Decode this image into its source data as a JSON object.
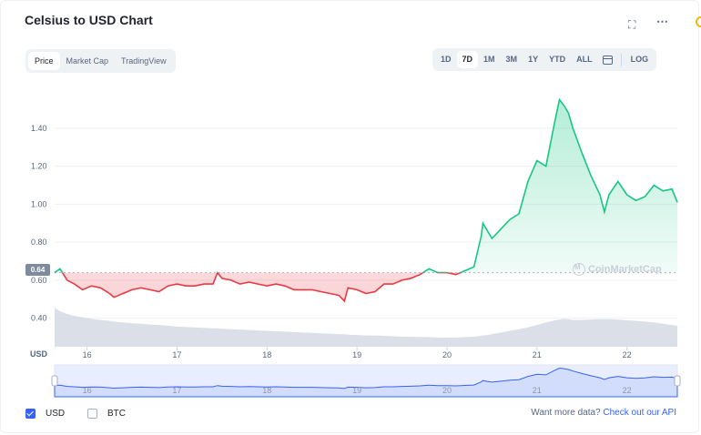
{
  "header": {
    "title": "Celsius to USD Chart"
  },
  "icons": {
    "expand": "expand-icon",
    "more": "more-icon",
    "calendar": "calendar-icon",
    "logo": "coinmarketcap-logo"
  },
  "view_tabs": [
    {
      "label": "Price",
      "active": true
    },
    {
      "label": "Market Cap",
      "active": false
    },
    {
      "label": "TradingView",
      "active": false
    }
  ],
  "range_tabs": [
    {
      "label": "1D",
      "active": false
    },
    {
      "label": "7D",
      "active": true
    },
    {
      "label": "1M",
      "active": false
    },
    {
      "label": "3M",
      "active": false
    },
    {
      "label": "1Y",
      "active": false
    },
    {
      "label": "YTD",
      "active": false
    },
    {
      "label": "ALL",
      "active": false
    }
  ],
  "log_label": "LOG",
  "watermark": "CoinMarketCap",
  "current_price_tag": "0.64",
  "legend": [
    {
      "label": "USD",
      "checked": true
    },
    {
      "label": "BTC",
      "checked": false
    }
  ],
  "api": {
    "prefix": "Want more data?",
    "link": "Check out our API"
  },
  "colors": {
    "up": "#16c784",
    "down": "#ea3943",
    "accent": "#3861fb",
    "volume": "#cfd4e0"
  },
  "chart_data": {
    "type": "line",
    "ylabel_unit": "USD",
    "yticks": [
      0.4,
      0.6,
      0.8,
      1.0,
      1.2,
      1.4
    ],
    "ytick_labels": [
      "0.40",
      "0.60",
      "0.80",
      "1.00",
      "1.20",
      "1.40"
    ],
    "ylim": [
      0.25,
      1.62
    ],
    "xlim": [
      15.64,
      22.56
    ],
    "xticks": [
      16,
      17,
      18,
      19,
      20,
      21,
      22
    ],
    "xtick_labels": [
      "16",
      "17",
      "18",
      "19",
      "20",
      "21",
      "22"
    ],
    "baseline": 0.64,
    "grid": true,
    "x": [
      15.64,
      15.7,
      15.78,
      15.86,
      15.95,
      16.05,
      16.15,
      16.25,
      16.3,
      16.4,
      16.5,
      16.6,
      16.7,
      16.8,
      16.9,
      17.0,
      17.1,
      17.2,
      17.3,
      17.4,
      17.45,
      17.5,
      17.6,
      17.7,
      17.8,
      17.9,
      18.0,
      18.1,
      18.2,
      18.3,
      18.4,
      18.5,
      18.6,
      18.7,
      18.8,
      18.86,
      18.9,
      19.0,
      19.1,
      19.2,
      19.3,
      19.4,
      19.5,
      19.6,
      19.7,
      19.8,
      19.9,
      20.0,
      20.1,
      20.2,
      20.3,
      20.38,
      20.4,
      20.45,
      20.5,
      20.6,
      20.7,
      20.8,
      20.9,
      21.0,
      21.1,
      21.2,
      21.25,
      21.3,
      21.35,
      21.4,
      21.5,
      21.6,
      21.7,
      21.75,
      21.8,
      21.9,
      22.0,
      22.1,
      22.2,
      22.3,
      22.4,
      22.5,
      22.56
    ],
    "y": [
      0.64,
      0.66,
      0.6,
      0.58,
      0.55,
      0.57,
      0.56,
      0.53,
      0.51,
      0.53,
      0.55,
      0.56,
      0.55,
      0.54,
      0.57,
      0.58,
      0.57,
      0.57,
      0.58,
      0.58,
      0.64,
      0.61,
      0.6,
      0.58,
      0.59,
      0.58,
      0.57,
      0.58,
      0.57,
      0.55,
      0.55,
      0.55,
      0.54,
      0.53,
      0.52,
      0.49,
      0.56,
      0.55,
      0.53,
      0.54,
      0.58,
      0.58,
      0.6,
      0.61,
      0.63,
      0.66,
      0.64,
      0.64,
      0.63,
      0.65,
      0.67,
      0.83,
      0.9,
      0.86,
      0.82,
      0.87,
      0.92,
      0.95,
      1.12,
      1.23,
      1.2,
      1.44,
      1.55,
      1.52,
      1.48,
      1.4,
      1.27,
      1.15,
      1.05,
      0.96,
      1.05,
      1.12,
      1.05,
      1.02,
      1.04,
      1.1,
      1.07,
      1.08,
      1.01
    ],
    "volume": [
      0.93,
      0.85,
      0.78,
      0.74,
      0.7,
      0.67,
      0.64,
      0.62,
      0.6,
      0.58,
      0.56,
      0.55,
      0.53,
      0.52,
      0.5,
      0.48,
      0.47,
      0.46,
      0.45,
      0.44,
      0.44,
      0.43,
      0.42,
      0.41,
      0.4,
      0.39,
      0.38,
      0.37,
      0.36,
      0.35,
      0.34,
      0.33,
      0.32,
      0.31,
      0.3,
      0.3,
      0.29,
      0.28,
      0.27,
      0.27,
      0.26,
      0.25,
      0.24,
      0.24,
      0.23,
      0.23,
      0.22,
      0.22,
      0.22,
      0.23,
      0.24,
      0.26,
      0.27,
      0.28,
      0.3,
      0.34,
      0.38,
      0.42,
      0.46,
      0.52,
      0.58,
      0.63,
      0.65,
      0.67,
      0.66,
      0.64,
      0.64,
      0.65,
      0.66,
      0.66,
      0.66,
      0.65,
      0.63,
      0.62,
      0.6,
      0.58,
      0.55,
      0.52,
      0.5
    ],
    "navigator_labels": [
      "16",
      "17",
      "18",
      "19",
      "20",
      "21",
      "22"
    ]
  }
}
